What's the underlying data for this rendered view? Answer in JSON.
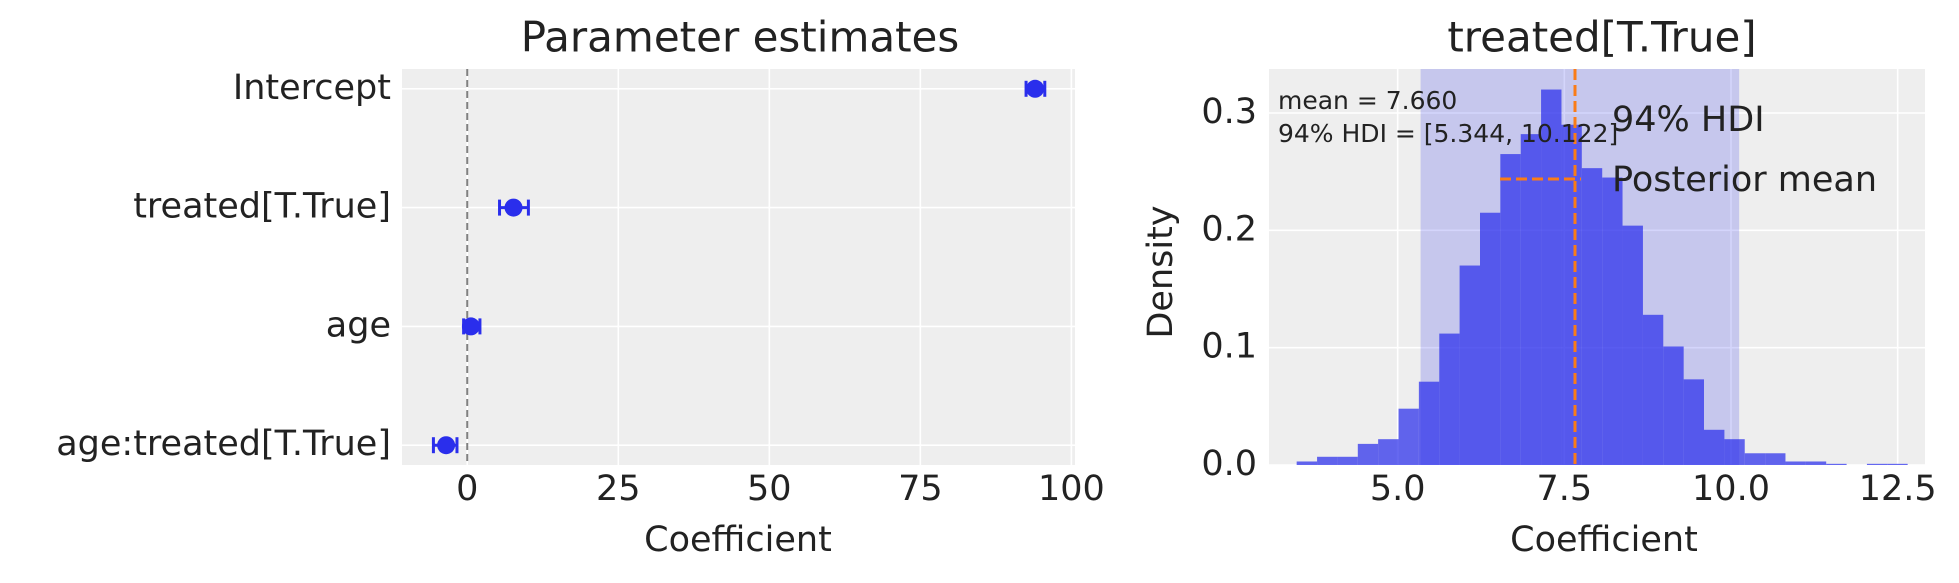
{
  "chart_data": [
    {
      "type": "errorbar",
      "title": "Parameter estimates",
      "xlabel": "Coefficient",
      "categories": [
        "Intercept",
        "treated[T.True]",
        "age",
        "age:treated[T.True]"
      ],
      "values": [
        94.0,
        7.66,
        0.6,
        -3.5
      ],
      "lower": [
        92.5,
        5.344,
        -0.6,
        -5.6
      ],
      "upper": [
        95.6,
        10.122,
        2.1,
        -1.7
      ],
      "color": "#2a2eec",
      "xlim": [
        -10.8,
        100.6
      ],
      "xticks": [
        0,
        25,
        50,
        75,
        100
      ],
      "grid": true,
      "reference_line": 0,
      "reference_color": "#808080"
    },
    {
      "type": "histogram",
      "title": "treated[T.True]",
      "xlabel": "Coefficient",
      "ylabel": "Density",
      "bins": [
        3.485,
        3.791,
        4.096,
        4.402,
        4.707,
        5.013,
        5.318,
        5.624,
        5.929,
        6.235,
        6.54,
        6.846,
        7.151,
        7.457,
        7.762,
        8.068,
        8.373,
        8.679,
        8.984,
        9.29,
        9.595,
        9.901,
        10.206,
        10.512,
        10.817,
        11.123,
        11.428,
        11.734,
        12.039,
        12.345,
        12.65
      ],
      "values": [
        0.003,
        0.007,
        0.007,
        0.018,
        0.022,
        0.048,
        0.071,
        0.112,
        0.17,
        0.215,
        0.265,
        0.282,
        0.32,
        0.29,
        0.253,
        0.245,
        0.204,
        0.128,
        0.101,
        0.073,
        0.03,
        0.022,
        0.01,
        0.01,
        0.003,
        0.003,
        0.001,
        0,
        0.001,
        0.001
      ],
      "color": "#2a2eec",
      "hdi": [
        5.344,
        10.122
      ],
      "mean": 7.66,
      "mean_color": "#fa7c17",
      "annotations": [
        "mean = 7.660",
        "94% HDI = [5.344, 10.122]"
      ],
      "legend_labels": [
        "94% HDI",
        "Posterior mean"
      ],
      "xlim": [
        3.07,
        12.91
      ],
      "xticks": [
        {
          "value": 5,
          "label": "5.0"
        },
        7.5,
        {
          "value": 10,
          "label": "10.0"
        },
        12.5
      ],
      "ylim": [
        0,
        0.3375
      ],
      "yticks": [
        {
          "value": 0,
          "label": "0.0"
        },
        0.1,
        0.2,
        0.3
      ],
      "grid": true
    }
  ]
}
